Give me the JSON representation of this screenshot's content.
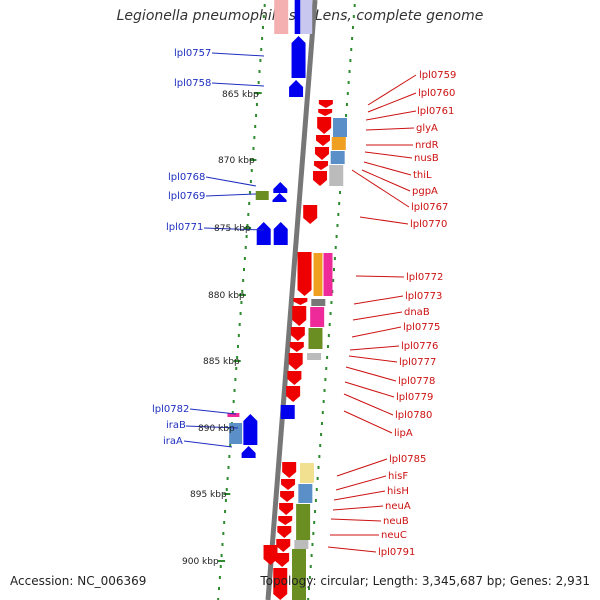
{
  "title": "Legionella pneumophila str. Lens, complete genome",
  "footer": {
    "accession": "Accession: NC_006369",
    "topology": "Topology: circular; Length: 3,345,687 bp; Genes: 2,931"
  },
  "kbp_labels": [
    "865 kbp",
    "870 kbp",
    "875 kbp",
    "880 kbp",
    "885 kbp",
    "890 kbp",
    "895 kbp",
    "900 kbp"
  ],
  "left_genes": [
    "lpl0757",
    "lpl0758",
    "lpl0768",
    "lpl0769",
    "lpl0771",
    "lpl0782",
    "iraB",
    "iraA"
  ],
  "right_genes": [
    "lpl0759",
    "lpl0760",
    "lpl0761",
    "glyA",
    "nrdR",
    "nusB",
    "thiL",
    "pgpA",
    "lpl0767",
    "lpl0770",
    "lpl0772",
    "lpl0773",
    "dnaB",
    "lpl0775",
    "lpl0776",
    "lpl0777",
    "lpl0778",
    "lpl0779",
    "lpl0780",
    "lipA",
    "lpl0785",
    "hisF",
    "hisH",
    "neuA",
    "neuB",
    "neuC",
    "lpl0791"
  ],
  "colors": {
    "forward_strand": "#0000ee",
    "reverse_strand": "#ee0000",
    "backbone": "#888888",
    "cog_blue": "#5b8fc7",
    "cog_orange": "#f0a020",
    "cog_magenta": "#ee2a9a",
    "cog_green": "#6b8e23",
    "cog_gray": "#bbbbbb",
    "cog_yellow": "#f0e090",
    "tick_green": "#2e8b2e"
  }
}
